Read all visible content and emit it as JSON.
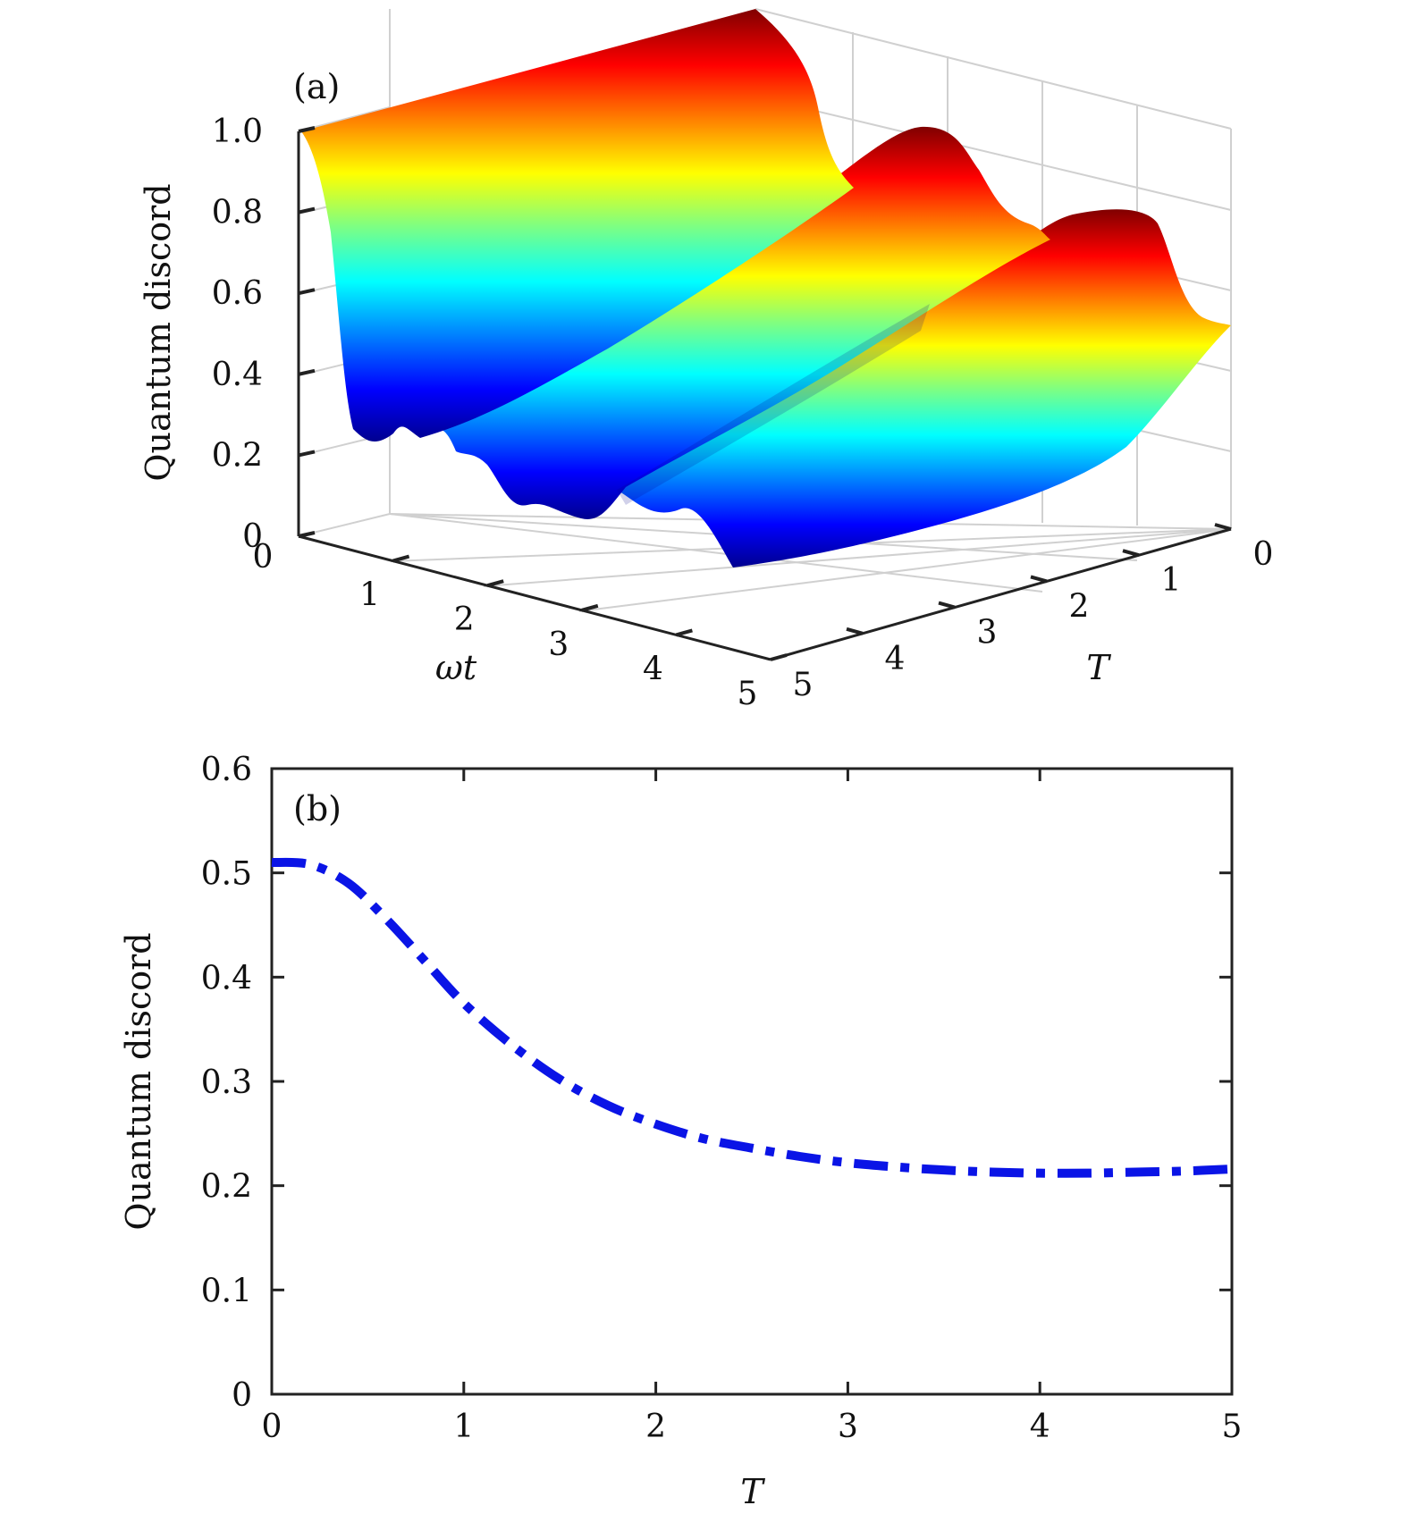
{
  "chart_data": [
    {
      "panel_label": "(a)",
      "type": "surface",
      "xlabel": "ωt",
      "ylabel": "T",
      "zlabel": "Quantum discord",
      "x_range": [
        0,
        5
      ],
      "y_range": [
        0,
        5
      ],
      "z_range": [
        0,
        1.0
      ],
      "x_ticks": [
        "0",
        "1",
        "2",
        "3",
        "4",
        "5"
      ],
      "y_ticks": [
        "0",
        "1",
        "2",
        "3",
        "4",
        "5"
      ],
      "z_ticks": [
        "0",
        "0.2",
        "0.4",
        "0.6",
        "0.8",
        "1.0"
      ],
      "colormap": "jet",
      "grid": true,
      "peaks": [
        {
          "x": 0,
          "y_from": 0,
          "y_to": 5,
          "z": 1.0
        },
        {
          "x": 2.0,
          "y_from": 0,
          "y_to": 5,
          "z": 0.78
        },
        {
          "x": 4.0,
          "y_from": 0,
          "y_to": 5,
          "z": 0.64
        }
      ],
      "troughs": [
        {
          "x": 1.0,
          "z": 0.24
        },
        {
          "x": 3.0,
          "z": 0.22
        },
        {
          "x": 5.0,
          "z": 0.48
        }
      ]
    },
    {
      "panel_label": "(b)",
      "type": "line",
      "xlabel": "T",
      "ylabel": "Quantum discord",
      "xlim": [
        0,
        5
      ],
      "ylim": [
        0,
        0.6
      ],
      "x_ticks": [
        "0",
        "1",
        "2",
        "3",
        "4",
        "5"
      ],
      "y_ticks": [
        "0",
        "0.1",
        "0.2",
        "0.3",
        "0.4",
        "0.5",
        "0.6"
      ],
      "grid": false,
      "series": [
        {
          "line_style": "dash-dot",
          "color": "#0a14e6",
          "x": [
            0,
            0.2,
            0.4,
            0.6,
            0.8,
            1.0,
            1.25,
            1.5,
            1.75,
            2.0,
            2.25,
            2.5,
            2.75,
            3.0,
            3.25,
            3.5,
            3.75,
            4.0,
            4.25,
            4.5,
            4.75,
            5.0
          ],
          "y": [
            0.51,
            0.508,
            0.49,
            0.455,
            0.415,
            0.375,
            0.335,
            0.302,
            0.277,
            0.259,
            0.245,
            0.236,
            0.228,
            0.222,
            0.218,
            0.215,
            0.213,
            0.212,
            0.212,
            0.213,
            0.214,
            0.216
          ]
        }
      ]
    }
  ]
}
